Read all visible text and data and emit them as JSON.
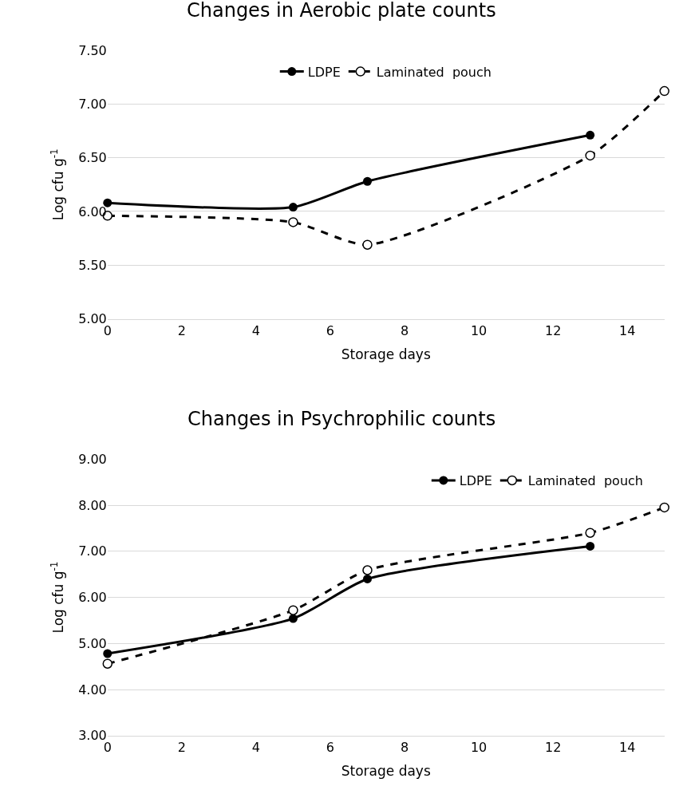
{
  "chart_data": [
    {
      "type": "line",
      "title": "Changes in Aerobic plate counts",
      "xlabel": "Storage days",
      "ylabel": "Log cfu g$^{-1}$",
      "xlim": [
        0,
        15
      ],
      "xticks": [
        0,
        2,
        4,
        6,
        8,
        10,
        12,
        14
      ],
      "ylim": [
        5,
        7.5
      ],
      "yticks": [
        {
          "value": 5,
          "label": "5.00"
        },
        {
          "value": 5.5,
          "label": "5.50"
        },
        {
          "value": 6,
          "label": "6.00"
        },
        {
          "value": 6.5,
          "label": "6.50"
        },
        {
          "value": 7,
          "label": "7.00"
        },
        {
          "value": 7.5,
          "label": "7.50"
        }
      ],
      "grid": "y",
      "legend": "top",
      "marker": "circle",
      "series": [
        {
          "name": "LDPE",
          "color": "#000000",
          "line_style": "solid",
          "x": [
            0,
            5,
            7,
            13
          ],
          "values": [
            6.08,
            6.04,
            6.28,
            6.71
          ]
        },
        {
          "name": "Laminated  pouch",
          "color": "#000000",
          "line_style": "dashed",
          "x": [
            0,
            5,
            7,
            13,
            15
          ],
          "values": [
            5.96,
            5.9,
            5.69,
            6.52,
            7.12
          ]
        }
      ]
    },
    {
      "type": "line",
      "title": "Changes in Psychrophilic counts",
      "xlabel": "Storage days",
      "ylabel": "Log cfu g$^{-1}$",
      "xlim": [
        0,
        15
      ],
      "xticks": [
        0,
        2,
        4,
        6,
        8,
        10,
        12,
        14
      ],
      "ylim": [
        3,
        9
      ],
      "yticks": [
        {
          "value": 3,
          "label": "3.00"
        },
        {
          "value": 4,
          "label": "4.00"
        },
        {
          "value": 5,
          "label": "5.00"
        },
        {
          "value": 6,
          "label": "6.00"
        },
        {
          "value": 7,
          "label": "7.00"
        },
        {
          "value": 8,
          "label": "8.00"
        },
        {
          "value": 9,
          "label": "9.00"
        }
      ],
      "grid": "y",
      "legend": "top right",
      "marker": "circle",
      "series": [
        {
          "name": "LDPE",
          "color": "#000000",
          "line_style": "solid",
          "x": [
            0,
            5,
            7,
            13
          ],
          "values": [
            4.78,
            5.54,
            6.4,
            7.11
          ]
        },
        {
          "name": "Laminated  pouch",
          "color": "#000000",
          "line_style": "dashed",
          "x": [
            0,
            5,
            7,
            13,
            15
          ],
          "values": [
            4.56,
            5.72,
            6.59,
            7.4,
            7.95
          ]
        }
      ]
    }
  ]
}
